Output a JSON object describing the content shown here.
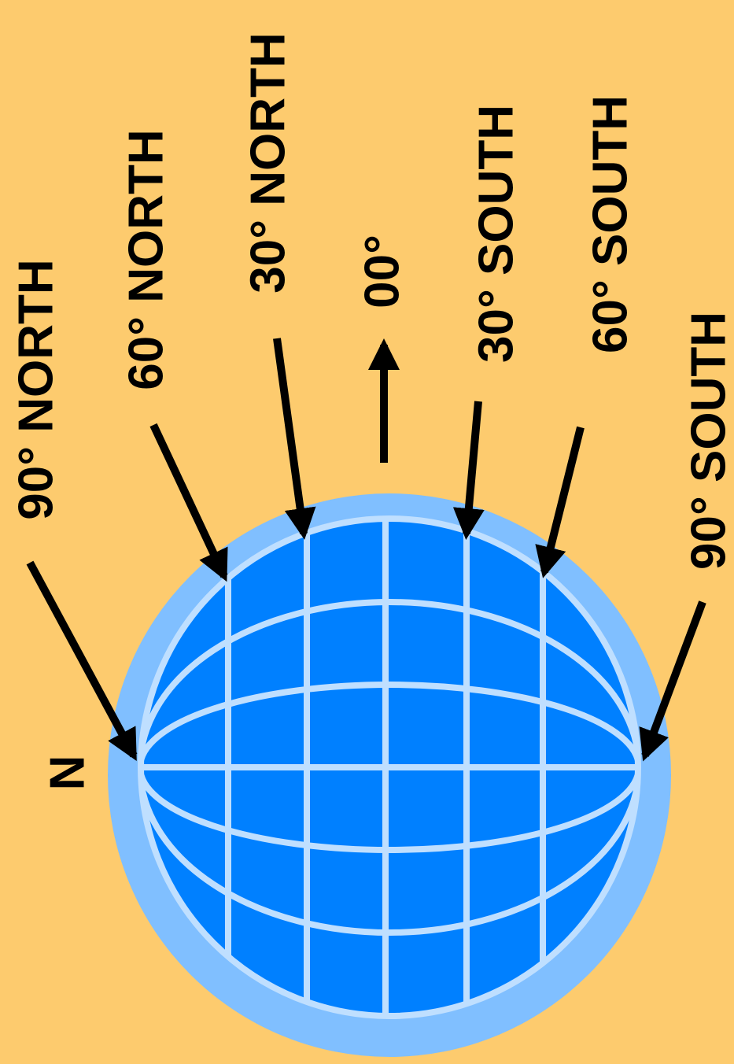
{
  "labels": [
    "90° NORTH",
    "60° NORTH",
    "30° NORTH",
    "00°",
    "30° SOUTH",
    "60° SOUTH",
    "90° SOUTH"
  ],
  "pole_label": "N"
}
